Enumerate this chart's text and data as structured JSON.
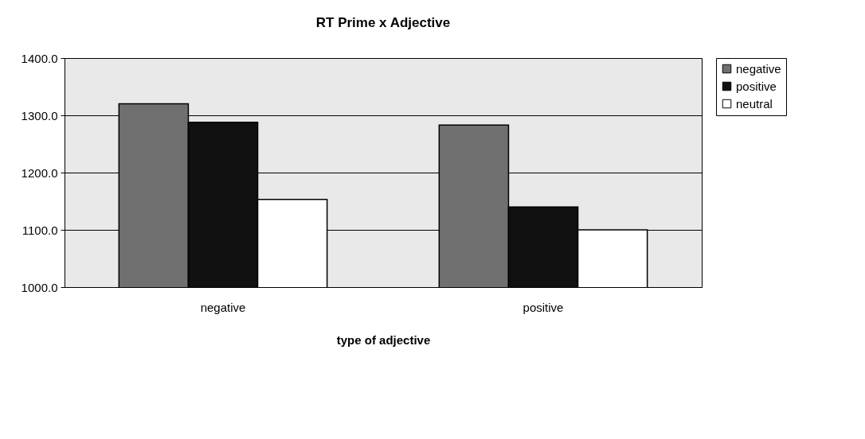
{
  "chart_data": {
    "type": "bar",
    "title": "RT  Prime x Adjective",
    "xlabel": "type of adjective",
    "categories": [
      "negative",
      "positive"
    ],
    "series": [
      {
        "name": "negative",
        "color": "#707070",
        "values": [
          1320,
          1283
        ]
      },
      {
        "name": "positive",
        "color": "#111111",
        "values": [
          1288,
          1140
        ]
      },
      {
        "name": "neutral",
        "color": "#ffffff",
        "values": [
          1153,
          1100
        ]
      }
    ],
    "ylim": [
      1000,
      1400
    ],
    "yticks": [
      {
        "value": 1000,
        "label": "1000.0"
      },
      {
        "value": 1100,
        "label": "1100.0"
      },
      {
        "value": 1200,
        "label": "1200.0"
      },
      {
        "value": 1300,
        "label": "1300.0"
      },
      {
        "value": 1400,
        "label": "1400.0"
      }
    ],
    "grid": "y",
    "legend": "right"
  }
}
